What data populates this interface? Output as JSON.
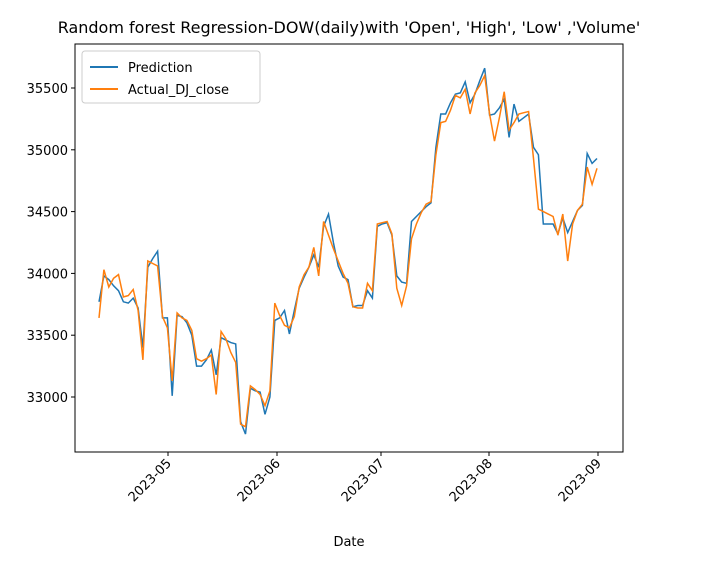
{
  "chart_data": {
    "type": "line",
    "title": "Random forest Regression-DOW(daily)with 'Open', 'High', 'Low' ,'Volume'",
    "xlabel": "Date",
    "xticks": [
      "2023-05",
      "2023-06",
      "2023-07",
      "2023-08",
      "2023-09"
    ],
    "ylim": [
      32555,
      35856
    ],
    "yticks": [
      33000,
      33500,
      34000,
      34500,
      35000,
      35500
    ],
    "legend": "upper left",
    "series": [
      {
        "name": "Prediction",
        "color": "#1f77b4",
        "values": [
          33770,
          33980,
          33950,
          33900,
          33860,
          33770,
          33760,
          33800,
          33720,
          33400,
          34050,
          34120,
          34180,
          33640,
          33640,
          33010,
          33660,
          33650,
          33600,
          33500,
          33250,
          33250,
          33300,
          33380,
          33180,
          33480,
          33460,
          33440,
          33430,
          32800,
          32700,
          33070,
          33050,
          33040,
          32860,
          33000,
          33620,
          33640,
          33700,
          33510,
          33700,
          33880,
          33970,
          34050,
          34150,
          34050,
          34380,
          34480,
          34250,
          34060,
          33970,
          33950,
          33730,
          33740,
          33740,
          33860,
          33800,
          34380,
          34400,
          34410,
          34310,
          33980,
          33930,
          33920,
          34420,
          34460,
          34500,
          34540,
          34570,
          35020,
          35290,
          35290,
          35380,
          35450,
          35460,
          35550,
          35380,
          35450,
          35560,
          35660,
          35280,
          35290,
          35340,
          35410,
          35100,
          35370,
          35230,
          35260,
          35290,
          35020,
          34960,
          34400,
          34400,
          34400,
          34320,
          34450,
          34330,
          34420,
          34510,
          34550,
          34970,
          34890,
          34930
        ]
      },
      {
        "name": "Actual_DJ_close",
        "color": "#ff7f0e",
        "values": [
          33640,
          34030,
          33890,
          33960,
          33990,
          33810,
          33820,
          33870,
          33700,
          33300,
          34100,
          34080,
          34060,
          33650,
          33560,
          33130,
          33680,
          33640,
          33620,
          33540,
          33310,
          33290,
          33310,
          33340,
          33020,
          33530,
          33470,
          33360,
          33280,
          32780,
          32760,
          33090,
          33060,
          33020,
          32930,
          33050,
          33760,
          33660,
          33580,
          33560,
          33650,
          33890,
          33990,
          34050,
          34210,
          33980,
          34420,
          34310,
          34200,
          34100,
          34000,
          33920,
          33730,
          33720,
          33720,
          33920,
          33860,
          34400,
          34410,
          34420,
          34320,
          33880,
          33740,
          33900,
          34280,
          34400,
          34490,
          34560,
          34580,
          34960,
          35220,
          35230,
          35320,
          35440,
          35420,
          35490,
          35290,
          35460,
          35520,
          35600,
          35290,
          35070,
          35260,
          35470,
          35160,
          35220,
          35290,
          35300,
          35310,
          34930,
          34520,
          34500,
          34480,
          34460,
          34310,
          34480,
          34100,
          34400,
          34510,
          34560,
          34860,
          34720,
          34850
        ]
      }
    ]
  }
}
